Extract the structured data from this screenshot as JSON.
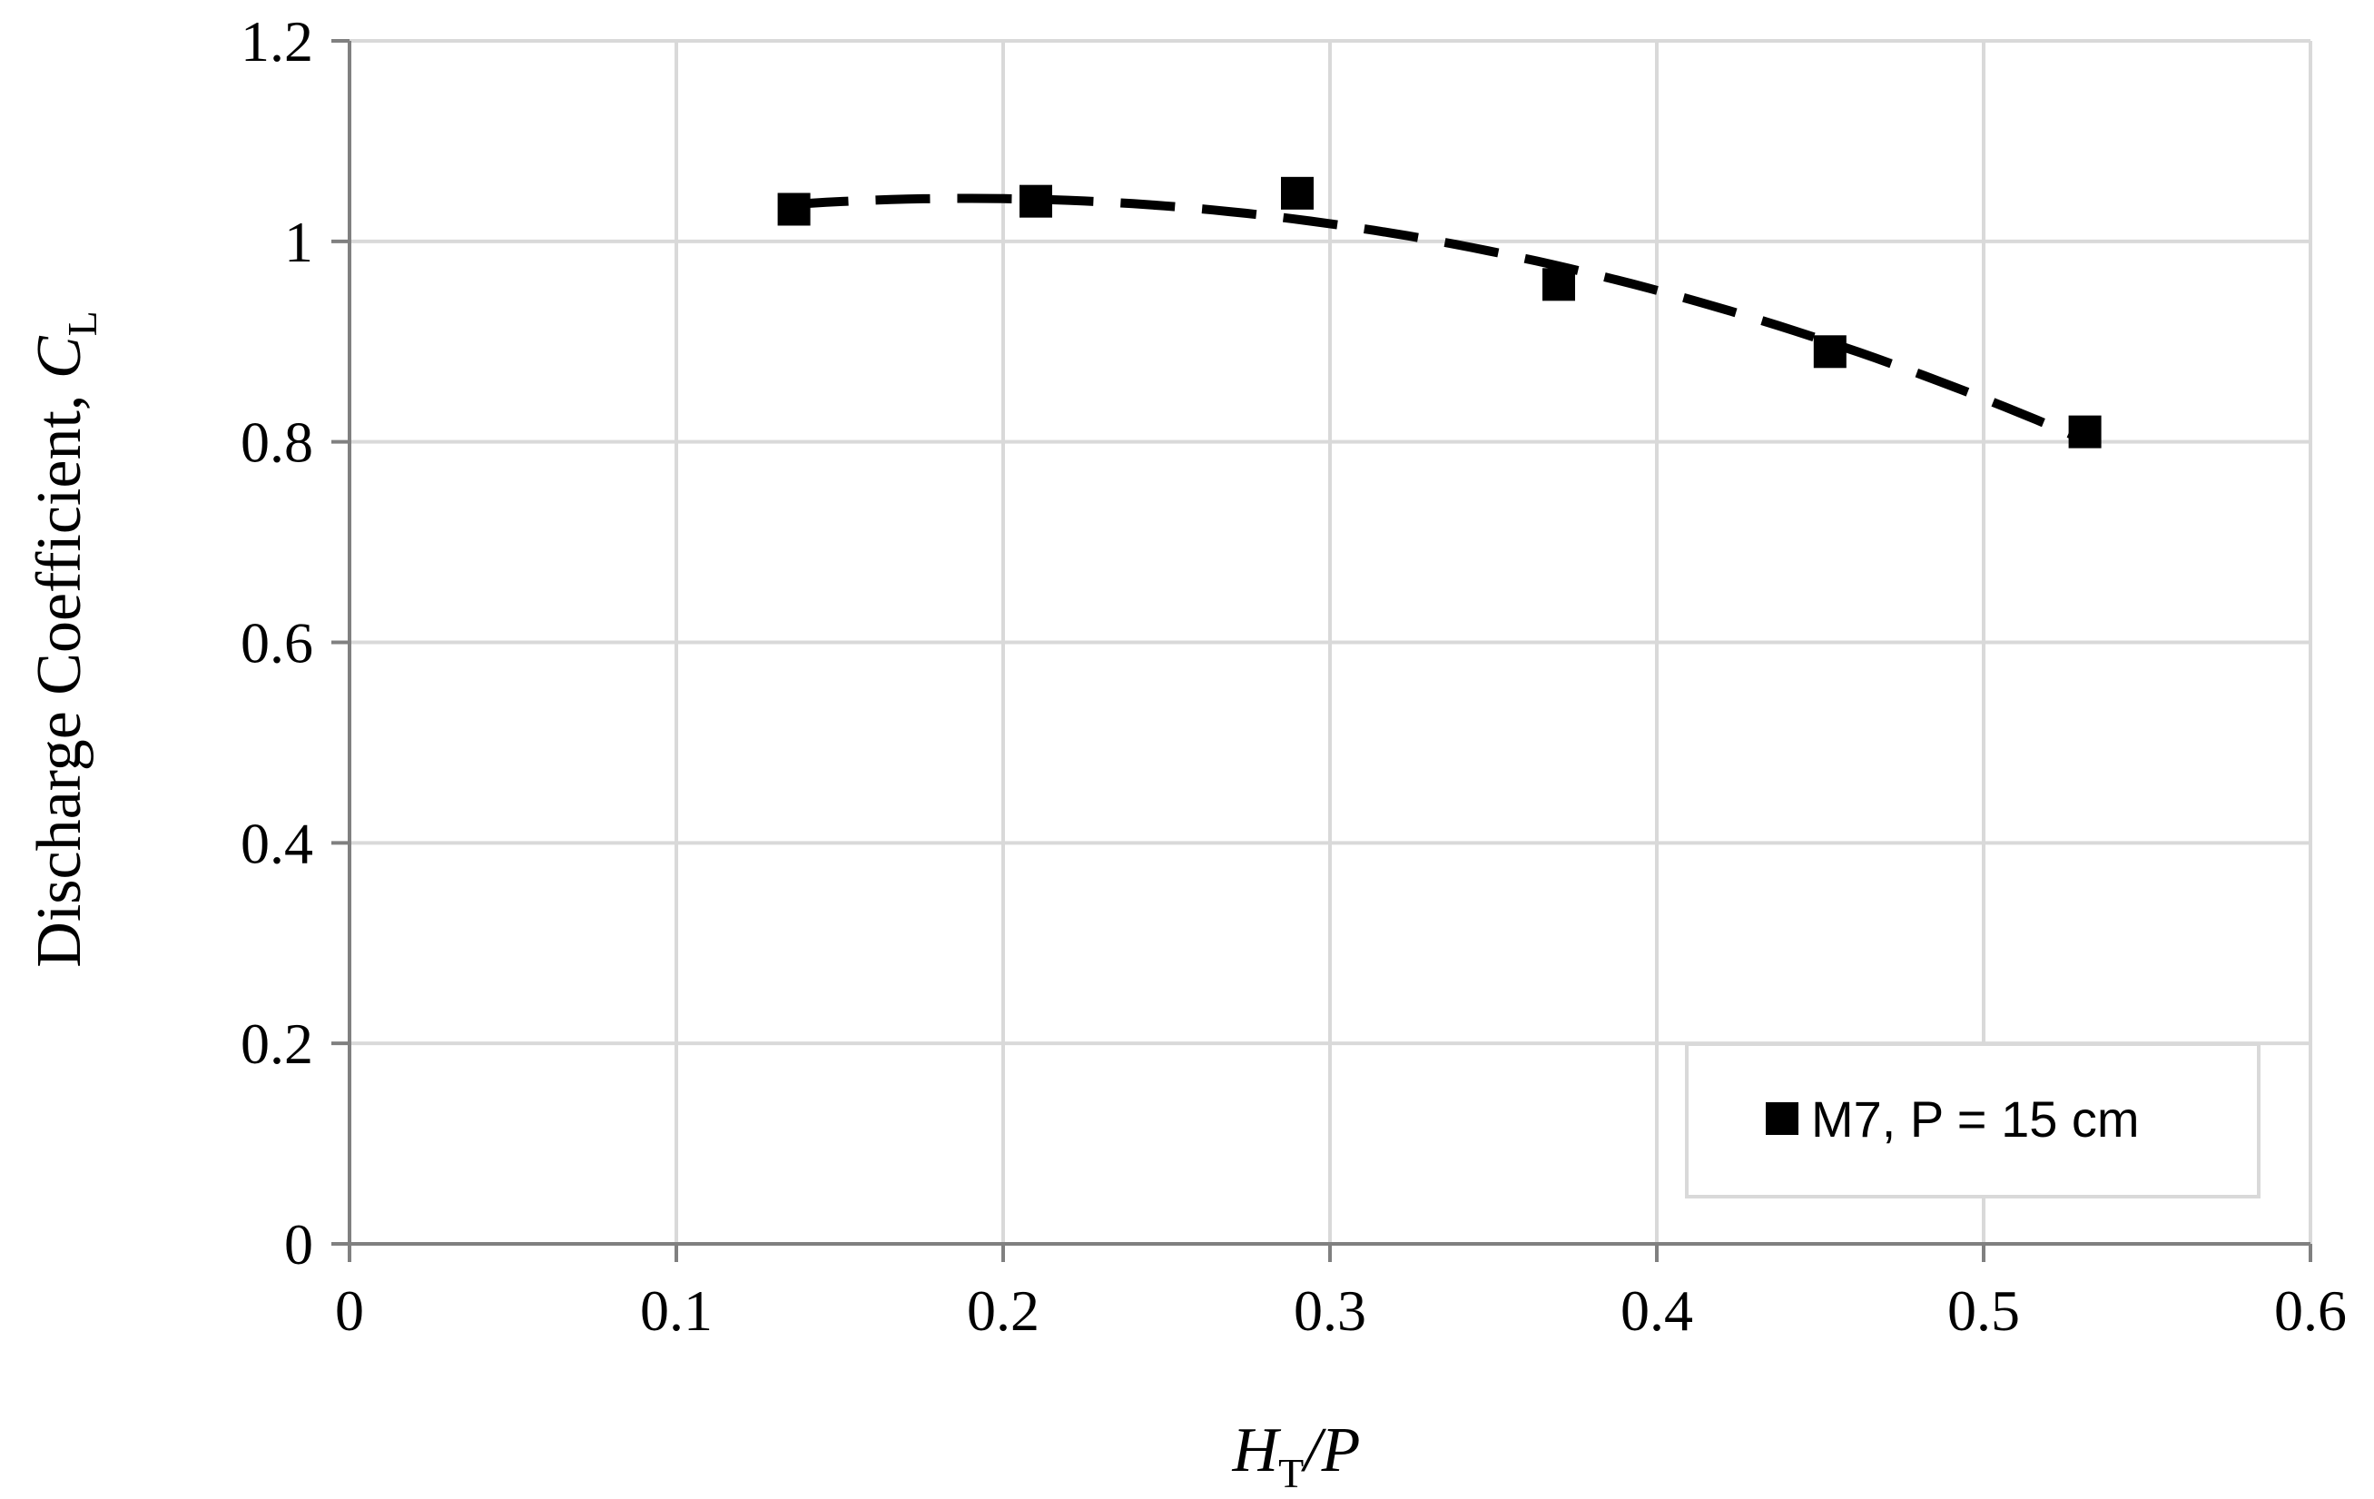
{
  "chart_data": {
    "type": "scatter",
    "title": "",
    "x_axis": {
      "label_italic_main": "H",
      "label_subscript": "T",
      "label_suffix": "/P",
      "range": [
        0,
        0.6
      ],
      "ticks": [
        0,
        0.1,
        0.2,
        0.3,
        0.4,
        0.5,
        0.6
      ],
      "tick_labels": [
        "0",
        "0.1",
        "0.2",
        "0.3",
        "0.4",
        "0.5",
        "0.6"
      ]
    },
    "y_axis": {
      "label_main": "Discharge Coefficient, ",
      "label_italic": "C",
      "label_subscript": "L",
      "range": [
        0,
        1.2
      ],
      "ticks": [
        0,
        0.2,
        0.4,
        0.6,
        0.8,
        1.0,
        1.2
      ],
      "tick_labels": [
        "0",
        "0.2",
        "0.4",
        "0.6",
        "0.8",
        "1",
        "1.2"
      ]
    },
    "grid": true,
    "legend_position": "bottom-right",
    "series": [
      {
        "name": "M7, P = 15 cm",
        "marker": "square",
        "color": "#000000",
        "x": [
          0.136,
          0.21,
          0.29,
          0.37,
          0.453,
          0.531
        ],
        "y": [
          1.032,
          1.04,
          1.048,
          0.957,
          0.89,
          0.81
        ],
        "trendline": {
          "type": "polynomial",
          "style": "dashed",
          "x_range": [
            0.136,
            0.531
          ]
        }
      }
    ],
    "colors": {
      "grid": "#d9d9d9",
      "axis": "#808080",
      "marker": "#000000"
    }
  }
}
